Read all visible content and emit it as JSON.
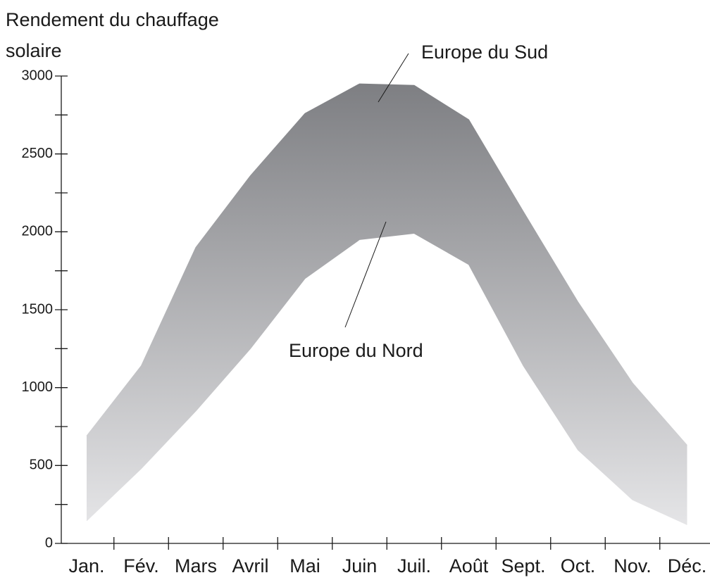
{
  "chart_data": {
    "type": "band",
    "title": [
      "Rendement du chauffage",
      "solaire"
    ],
    "categories": [
      "Jan.",
      "Fév.",
      "Mars",
      "Avril",
      "Mai",
      "Juin",
      "Juil.",
      "Août",
      "Sept.",
      "Oct.",
      "Nov.",
      "Déc."
    ],
    "series": [
      {
        "name": "Europe du Sud",
        "values": [
          690,
          1140,
          1900,
          2360,
          2760,
          2950,
          2940,
          2720,
          2130,
          1550,
          1030,
          630
        ]
      },
      {
        "name": "Europe du Nord",
        "values": [
          145,
          480,
          850,
          1250,
          1700,
          1950,
          1990,
          1790,
          1140,
          600,
          280,
          120
        ]
      }
    ],
    "colors": [
      "#7c7d81",
      "#e9e9eb"
    ],
    "ylim": [
      0,
      3000
    ],
    "yticks": [
      0,
      500,
      1000,
      1500,
      2000,
      2500,
      3000
    ],
    "yticks_minor": [
      250,
      750,
      1250,
      1750,
      2250,
      2750
    ]
  }
}
